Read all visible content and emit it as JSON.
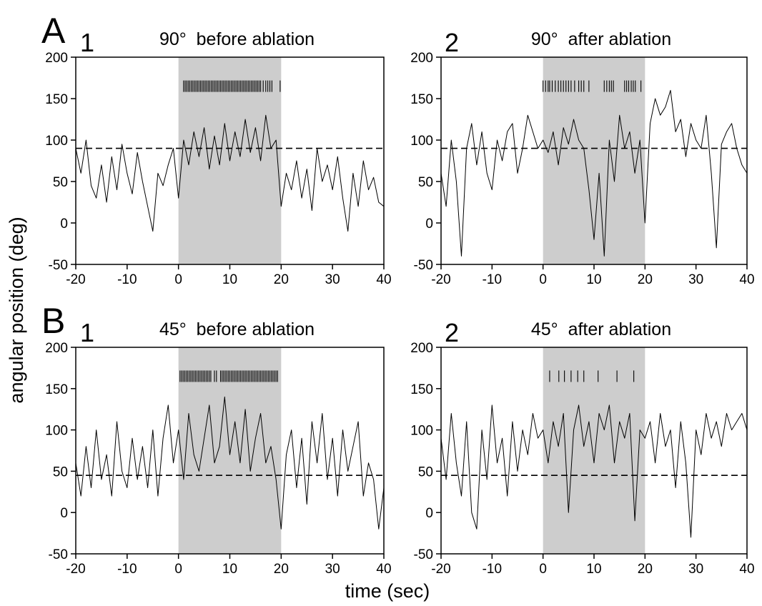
{
  "figure": {
    "ylabel": "angular position (deg)",
    "xlabel": "time (sec)"
  },
  "chart_data": [
    {
      "type": "line",
      "group": "A",
      "number": "1",
      "title": "90°  before ablation",
      "xlim": [
        -20,
        40
      ],
      "ylim": [
        -50,
        200
      ],
      "xticks": [
        -20,
        -10,
        0,
        10,
        20,
        30,
        40
      ],
      "yticks": [
        -50,
        0,
        50,
        100,
        150,
        200
      ],
      "shaded_interval": [
        0,
        20
      ],
      "reference_line": 90,
      "event_raster_y": 165,
      "events": [
        1,
        1.3,
        1.6,
        1.9,
        2.2,
        2.5,
        2.8,
        3.1,
        3.4,
        3.7,
        4,
        4.3,
        4.6,
        4.9,
        5.2,
        5.5,
        5.8,
        6.1,
        6.4,
        6.7,
        7,
        7.3,
        7.6,
        7.9,
        8.2,
        8.5,
        8.8,
        9.1,
        9.4,
        9.7,
        10,
        10.3,
        10.6,
        10.9,
        11.2,
        11.5,
        11.8,
        12.1,
        12.4,
        12.7,
        13,
        13.3,
        13.6,
        13.9,
        14.2,
        14.5,
        14.8,
        15.1,
        15.4,
        15.7,
        16,
        16.5,
        17,
        17.4,
        17.8,
        18.2,
        19.8
      ],
      "series": [
        {
          "x": [
            -20,
            -19,
            -18,
            -17,
            -16,
            -15,
            -14,
            -13,
            -12,
            -11,
            -10,
            -9,
            -8,
            -7,
            -6,
            -5,
            -4,
            -3,
            -2,
            -1,
            0,
            1,
            2,
            3,
            4,
            5,
            6,
            7,
            8,
            9,
            10,
            11,
            12,
            13,
            14,
            15,
            16,
            17,
            18,
            19,
            20,
            21,
            22,
            23,
            24,
            25,
            26,
            27,
            28,
            29,
            30,
            31,
            32,
            33,
            34,
            35,
            36,
            37,
            38,
            39,
            40
          ],
          "y": [
            90,
            60,
            100,
            45,
            30,
            70,
            25,
            80,
            40,
            95,
            60,
            35,
            85,
            50,
            20,
            -10,
            60,
            45,
            70,
            90,
            30,
            100,
            70,
            110,
            80,
            115,
            65,
            105,
            70,
            120,
            75,
            110,
            80,
            125,
            85,
            115,
            75,
            130,
            90,
            100,
            20,
            60,
            40,
            75,
            30,
            65,
            15,
            90,
            50,
            70,
            40,
            80,
            30,
            -10,
            60,
            20,
            75,
            40,
            55,
            25,
            20
          ]
        }
      ]
    },
    {
      "type": "line",
      "group": "",
      "number": "2",
      "title": "90°  after ablation",
      "xlim": [
        -20,
        40
      ],
      "ylim": [
        -50,
        200
      ],
      "xticks": [
        -20,
        -10,
        0,
        10,
        20,
        30,
        40
      ],
      "yticks": [
        -50,
        0,
        50,
        100,
        150,
        200
      ],
      "shaded_interval": [
        0,
        20
      ],
      "reference_line": 90,
      "event_raster_y": 165,
      "events": [
        0,
        0.5,
        1,
        1.3,
        1.8,
        2.4,
        3,
        3.5,
        4,
        4.5,
        5,
        5.5,
        6.2,
        7,
        7.5,
        8,
        9,
        12,
        12.5,
        13,
        13.4,
        13.8,
        16,
        16.4,
        16.8,
        17.3,
        17.7,
        18.1,
        19.2
      ],
      "series": [
        {
          "x": [
            -20,
            -19,
            -18,
            -17,
            -16,
            -15,
            -14,
            -13,
            -12,
            -11,
            -10,
            -9,
            -8,
            -7,
            -6,
            -5,
            -4,
            -3,
            -2,
            -1,
            0,
            1,
            2,
            3,
            4,
            5,
            6,
            7,
            8,
            9,
            10,
            11,
            12,
            13,
            14,
            15,
            16,
            17,
            18,
            19,
            20,
            21,
            22,
            23,
            24,
            25,
            26,
            27,
            28,
            29,
            30,
            31,
            32,
            33,
            34,
            35,
            36,
            37,
            38,
            39,
            40
          ],
          "y": [
            60,
            20,
            100,
            50,
            -40,
            90,
            120,
            70,
            110,
            60,
            40,
            100,
            75,
            110,
            120,
            60,
            90,
            130,
            110,
            90,
            100,
            85,
            110,
            70,
            115,
            95,
            125,
            100,
            90,
            40,
            -20,
            60,
            -40,
            100,
            50,
            130,
            90,
            110,
            60,
            100,
            0,
            120,
            150,
            130,
            140,
            160,
            110,
            125,
            80,
            120,
            100,
            90,
            130,
            60,
            -30,
            95,
            110,
            120,
            90,
            70,
            60
          ]
        }
      ]
    },
    {
      "type": "line",
      "group": "B",
      "number": "1",
      "title": "45°  before ablation",
      "xlim": [
        -20,
        40
      ],
      "ylim": [
        -50,
        200
      ],
      "xticks": [
        -20,
        -10,
        0,
        10,
        20,
        30,
        40
      ],
      "yticks": [
        -50,
        0,
        50,
        100,
        150,
        200
      ],
      "shaded_interval": [
        0,
        20
      ],
      "reference_line": 45,
      "event_raster_y": 165,
      "events": [
        0.3,
        0.6,
        0.9,
        1.2,
        1.5,
        1.8,
        2.1,
        2.4,
        2.7,
        3,
        3.3,
        3.6,
        3.9,
        4.2,
        4.5,
        4.8,
        5.1,
        5.4,
        5.7,
        6,
        6.3,
        7,
        7.4,
        8.2,
        8.5,
        8.8,
        9.1,
        9.4,
        9.7,
        10,
        10.3,
        10.6,
        10.9,
        11.2,
        11.5,
        11.8,
        12.1,
        12.4,
        12.7,
        13,
        13.3,
        13.6,
        13.9,
        14.2,
        14.5,
        14.8,
        15.1,
        15.4,
        15.7,
        16,
        16.3,
        16.6,
        16.9,
        17.2,
        17.5,
        17.8,
        18.1,
        18.4,
        18.7,
        19,
        19.3
      ],
      "series": [
        {
          "x": [
            -20,
            -19,
            -18,
            -17,
            -16,
            -15,
            -14,
            -13,
            -12,
            -11,
            -10,
            -9,
            -8,
            -7,
            -6,
            -5,
            -4,
            -3,
            -2,
            -1,
            0,
            1,
            2,
            3,
            4,
            5,
            6,
            7,
            8,
            9,
            10,
            11,
            12,
            13,
            14,
            15,
            16,
            17,
            18,
            19,
            20,
            21,
            22,
            23,
            24,
            25,
            26,
            27,
            28,
            29,
            30,
            31,
            32,
            33,
            34,
            35,
            36,
            37,
            38,
            39,
            40
          ],
          "y": [
            60,
            20,
            80,
            30,
            100,
            40,
            70,
            20,
            110,
            50,
            30,
            90,
            40,
            80,
            30,
            100,
            20,
            90,
            130,
            60,
            100,
            40,
            120,
            70,
            50,
            90,
            130,
            60,
            80,
            140,
            70,
            110,
            60,
            125,
            50,
            90,
            120,
            60,
            80,
            40,
            -20,
            70,
            100,
            30,
            90,
            10,
            110,
            60,
            120,
            40,
            90,
            20,
            100,
            50,
            80,
            110,
            20,
            60,
            40,
            -20,
            30
          ]
        }
      ]
    },
    {
      "type": "line",
      "group": "",
      "number": "2",
      "title": "45°  after ablation",
      "xlim": [
        -20,
        40
      ],
      "ylim": [
        -50,
        200
      ],
      "xticks": [
        -20,
        -10,
        0,
        10,
        20,
        30,
        40
      ],
      "yticks": [
        -50,
        0,
        50,
        100,
        150,
        200
      ],
      "shaded_interval": [
        0,
        20
      ],
      "reference_line": 45,
      "event_raster_y": 165,
      "events": [
        1.3,
        3.1,
        4.2,
        5.5,
        6.8,
        8,
        10.8,
        14.5,
        17.8
      ],
      "series": [
        {
          "x": [
            -20,
            -19,
            -18,
            -17,
            -16,
            -15,
            -14,
            -13,
            -12,
            -11,
            -10,
            -9,
            -8,
            -7,
            -6,
            -5,
            -4,
            -3,
            -2,
            -1,
            0,
            1,
            2,
            3,
            4,
            5,
            6,
            7,
            8,
            9,
            10,
            11,
            12,
            13,
            14,
            15,
            16,
            17,
            18,
            19,
            20,
            21,
            22,
            23,
            24,
            25,
            26,
            27,
            28,
            29,
            30,
            31,
            32,
            33,
            34,
            35,
            36,
            37,
            38,
            39,
            40
          ],
          "y": [
            90,
            40,
            120,
            60,
            20,
            110,
            0,
            -20,
            100,
            40,
            130,
            60,
            90,
            20,
            110,
            50,
            100,
            70,
            120,
            90,
            100,
            60,
            110,
            80,
            120,
            0,
            100,
            130,
            80,
            110,
            60,
            120,
            100,
            130,
            60,
            110,
            90,
            120,
            -10,
            100,
            90,
            110,
            60,
            120,
            80,
            100,
            30,
            110,
            60,
            -30,
            100,
            70,
            120,
            90,
            110,
            80,
            120,
            100,
            110,
            120,
            100
          ]
        }
      ]
    }
  ]
}
